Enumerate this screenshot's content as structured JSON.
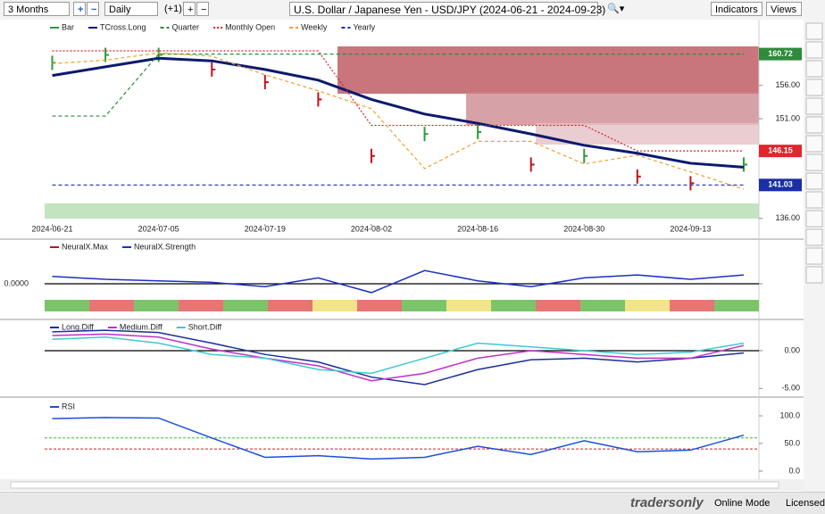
{
  "toolbar": {
    "range": "3 Months",
    "interval": "Daily",
    "offset": "(+1)",
    "title": "U.S. Dollar / Japanese Yen - USD/JPY (2024-06-21 - 2024-09-23)",
    "indicators": "Indicators",
    "views": "Views"
  },
  "status": {
    "brand": "tradersonly",
    "mode": "Online Mode",
    "license": "Licensed"
  },
  "chart_data": [
    {
      "type": "line",
      "x": [
        "2024-06-21",
        "2024-06-28",
        "2024-07-05",
        "2024-07-12",
        "2024-07-19",
        "2024-07-26",
        "2024-08-02",
        "2024-08-09",
        "2024-08-16",
        "2024-08-23",
        "2024-08-30",
        "2024-09-06",
        "2024-09-13",
        "2024-09-20"
      ],
      "xlim": [
        "2024-06-20",
        "2024-09-22"
      ],
      "xticks": [
        "2024-06-21",
        "2024-07-05",
        "2024-07-19",
        "2024-08-02",
        "2024-08-16",
        "2024-08-30",
        "2024-09-13"
      ],
      "ylim": [
        135.3,
        165.9
      ],
      "yticks": [
        {
          "value": 136,
          "label": "136.00"
        },
        {
          "value": 151,
          "label": "151.00"
        },
        {
          "value": 156,
          "label": "156.00"
        }
      ],
      "price_labels": [
        {
          "value": 160.72,
          "label": "160.72",
          "color": "#2e8b3a"
        },
        {
          "value": 146.15,
          "label": "146.15",
          "color": "#e0262c"
        },
        {
          "value": 141.03,
          "label": "141.03",
          "color": "#1a2fa8"
        }
      ],
      "series": [
        {
          "name": "Bar",
          "style": "ohlc",
          "color": "#2e9b3a",
          "down_color": "#c0141b",
          "values": [
            159.4,
            160.6,
            160.6,
            158.4,
            156.5,
            153.9,
            145.4,
            148.7,
            149.0,
            144.1,
            145.4,
            142.3,
            141.3,
            144.1
          ]
        },
        {
          "name": "TCross.Long",
          "style": "solid",
          "color": "#0a1a6e",
          "values": [
            157.5,
            158.8,
            160.1,
            159.7,
            158.4,
            156.8,
            153.9,
            151.7,
            150.3,
            148.7,
            147.0,
            145.8,
            144.3,
            143.7
          ]
        },
        {
          "name": "Quarter",
          "style": "dashed",
          "color": "#2e8b3a",
          "values": [
            151.4,
            151.4,
            160.72,
            160.72,
            160.72,
            160.72,
            160.72,
            160.72,
            160.72,
            160.72,
            160.72,
            160.72,
            160.72,
            160.72
          ]
        },
        {
          "name": "Monthly Open",
          "style": "dotted",
          "color": "#d0262c",
          "values": [
            161.2,
            161.2,
            161.2,
            161.2,
            161.2,
            161.2,
            150.0,
            150.0,
            150.0,
            150.0,
            150.0,
            146.15,
            146.15,
            146.15
          ]
        },
        {
          "name": "Weekly",
          "style": "dashed",
          "color": "#f0a030",
          "values": [
            159.3,
            159.8,
            160.9,
            160.4,
            157.6,
            155.2,
            152.5,
            143.5,
            147.6,
            147.6,
            144.2,
            145.5,
            143.0,
            140.4
          ]
        },
        {
          "name": "Yearly",
          "style": "dashed",
          "color": "#1a2fa8",
          "values": [
            141.03,
            141.03,
            141.03,
            141.03,
            141.03,
            141.03,
            141.03,
            141.03,
            141.03,
            141.03,
            141.03,
            141.03,
            141.03,
            141.03
          ]
        }
      ]
    },
    {
      "type": "line",
      "x": [
        "2024-06-21",
        "2024-06-28",
        "2024-07-05",
        "2024-07-12",
        "2024-07-19",
        "2024-07-26",
        "2024-08-02",
        "2024-08-09",
        "2024-08-16",
        "2024-08-23",
        "2024-08-30",
        "2024-09-06",
        "2024-09-13",
        "2024-09-20"
      ],
      "xlim": [
        "2024-06-20",
        "2024-09-22"
      ],
      "ylim": [
        -1,
        1
      ],
      "yticks": [
        {
          "value": 0,
          "label": "0.0000"
        }
      ],
      "levels": [
        {
          "value": 0,
          "color": "#000000"
        }
      ],
      "strip_colors": [
        "#7cc46a",
        "#e87474",
        "#7cc46a",
        "#e87474",
        "#7cc46a",
        "#e87474",
        "#f2e48a",
        "#e87474",
        "#7cc46a",
        "#f2e48a",
        "#7cc46a",
        "#e87474",
        "#7cc46a",
        "#f2e48a",
        "#e87474",
        "#7cc46a"
      ],
      "series": [
        {
          "name": "NeuralX.Max",
          "style": "legend",
          "color": "#c0141b",
          "values": [
            null,
            null,
            null,
            null,
            null,
            null,
            null,
            null,
            null,
            null,
            null,
            null,
            null,
            null
          ]
        },
        {
          "name": "NeuralX.Strength",
          "style": "solid",
          "color": "#1a2fc8",
          "values": [
            0.25,
            0.15,
            0.1,
            0.05,
            -0.1,
            0.2,
            -0.3,
            0.45,
            0.1,
            -0.1,
            0.2,
            0.3,
            0.15,
            0.3
          ]
        }
      ]
    },
    {
      "type": "line",
      "x": [
        "2024-06-21",
        "2024-06-28",
        "2024-07-05",
        "2024-07-12",
        "2024-07-19",
        "2024-07-26",
        "2024-08-02",
        "2024-08-09",
        "2024-08-16",
        "2024-08-23",
        "2024-08-30",
        "2024-09-06",
        "2024-09-13",
        "2024-09-20"
      ],
      "xlim": [
        "2024-06-20",
        "2024-09-22"
      ],
      "ylim": [
        -5.8,
        3.9
      ],
      "yticks": [
        {
          "value": 0,
          "label": "0.00"
        },
        {
          "value": -5,
          "label": "-5.00"
        }
      ],
      "levels": [
        {
          "value": 0,
          "color": "#000000"
        }
      ],
      "series": [
        {
          "name": "Long.Diff",
          "style": "solid",
          "color": "#1a2f9a",
          "values": [
            2.5,
            2.7,
            2.4,
            1.0,
            -0.5,
            -1.5,
            -3.5,
            -4.5,
            -2.5,
            -1.2,
            -1.0,
            -1.5,
            -1.0,
            -0.3
          ]
        },
        {
          "name": "Medium.Diff",
          "style": "solid",
          "color": "#c030c8",
          "values": [
            2.0,
            2.2,
            1.8,
            0.2,
            -1.0,
            -2.0,
            -4.0,
            -3.0,
            -1.0,
            0.0,
            -0.5,
            -1.0,
            -1.0,
            0.7
          ]
        },
        {
          "name": "Short.Diff",
          "style": "solid",
          "color": "#40c8d0",
          "values": [
            1.5,
            1.8,
            1.0,
            -0.5,
            -1.0,
            -2.5,
            -3.0,
            -1.0,
            1.0,
            0.5,
            0.0,
            -0.5,
            -0.2,
            1.0
          ]
        }
      ]
    },
    {
      "type": "line",
      "x": [
        "2024-06-21",
        "2024-06-28",
        "2024-07-05",
        "2024-07-12",
        "2024-07-19",
        "2024-07-26",
        "2024-08-02",
        "2024-08-09",
        "2024-08-16",
        "2024-08-23",
        "2024-08-30",
        "2024-09-06",
        "2024-09-13",
        "2024-09-20"
      ],
      "xlim": [
        "2024-06-20",
        "2024-09-22"
      ],
      "ylim": [
        -6.5,
        122.6
      ],
      "yticks": [
        {
          "value": 100,
          "label": "100.0"
        },
        {
          "value": 50,
          "label": "50.0"
        },
        {
          "value": 0,
          "label": "0.0"
        }
      ],
      "levels": [
        {
          "value": 60,
          "color": "#30c030"
        },
        {
          "value": 40,
          "color": "#d02020"
        }
      ],
      "series": [
        {
          "name": "RSI",
          "style": "solid",
          "color": "#1a4fd8",
          "values": [
            95,
            97,
            96,
            60,
            25,
            28,
            22,
            25,
            45,
            30,
            55,
            35,
            38,
            65
          ]
        }
      ]
    }
  ]
}
